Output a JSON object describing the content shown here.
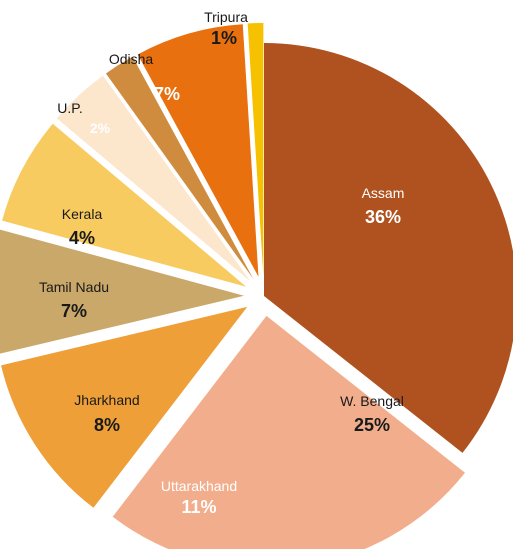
{
  "chart_data": {
    "type": "pie",
    "slices": [
      {
        "label": "Assam",
        "value": 36,
        "value_label": "36%",
        "color": "#B0521F",
        "text_color": "#ffffff",
        "exploded": false
      },
      {
        "label": "W. Bengal",
        "value": 25,
        "value_label": "25%",
        "color": "#F2AE8C",
        "text_color": "#1a1a1a",
        "exploded": true
      },
      {
        "label": "Uttarakhand",
        "value": 11,
        "value_label": "11%",
        "color": "#EE9F37",
        "text_color": "#ffffff",
        "exploded": true
      },
      {
        "label": "Jharkhand",
        "value": 8,
        "value_label": "8%",
        "color": "#C9A86A",
        "text_color": "#1a1a1a",
        "exploded": true
      },
      {
        "label": "Tamil Nadu",
        "value": 7,
        "value_label": "7%",
        "color": "#F8CB60",
        "text_color": "#1a1a1a",
        "exploded": true
      },
      {
        "label": "Kerala",
        "value": 4,
        "value_label": "4%",
        "color": "#FCE6CC",
        "text_color": "#1a1a1a",
        "exploded": true
      },
      {
        "label": "U.P.",
        "value": 2,
        "value_label": "2%",
        "color": "#D08C3E",
        "text_color": "#ffffff",
        "exploded": true
      },
      {
        "label": "Odisha",
        "value": 7,
        "value_label": "7%",
        "color": "#E8700F",
        "text_color": "#ffffff",
        "exploded": true
      },
      {
        "label": "Tripura",
        "value": 1,
        "value_label": "1%",
        "color": "#F6C100",
        "text_color": "#1a1a1a",
        "exploded": true
      }
    ]
  }
}
